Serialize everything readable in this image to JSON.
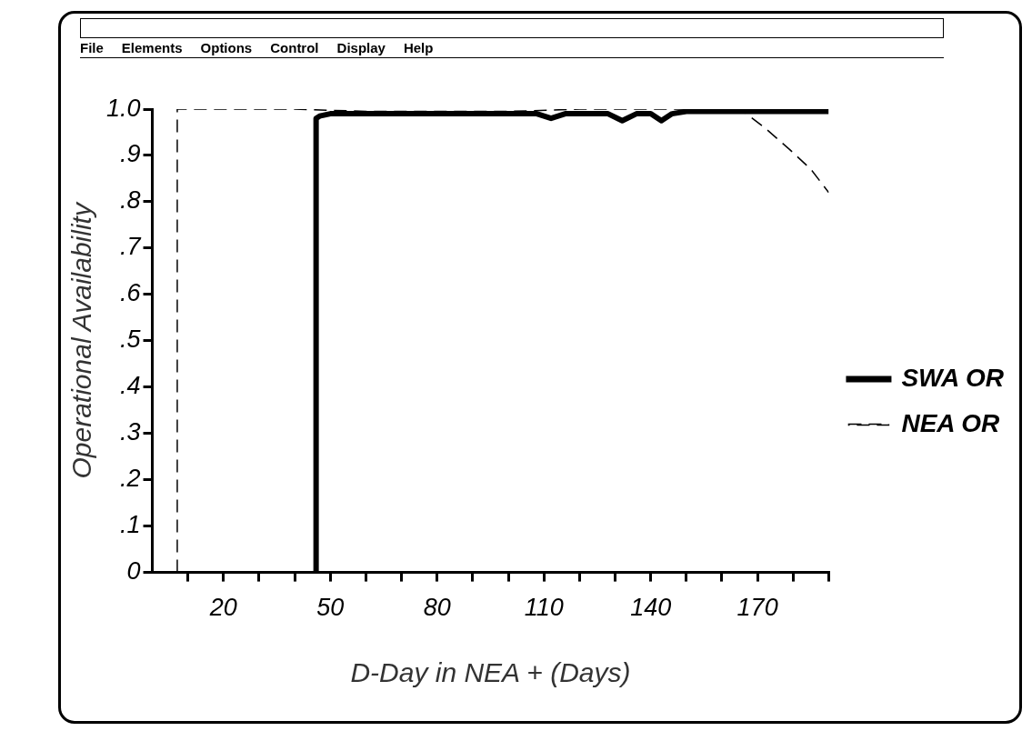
{
  "chart_data": {
    "type": "line",
    "xlabel": "D-Day in NEA + (Days)",
    "ylabel": "Operational Availability",
    "annotations": [
      "File",
      "Elements",
      "Options",
      "Control",
      "Display",
      "Help"
    ],
    "xlim": [
      0,
      190
    ],
    "ylim": [
      0,
      1
    ],
    "xticks": [
      {
        "value": 10,
        "label": null
      },
      20,
      {
        "value": 30,
        "label": null
      },
      {
        "value": 40,
        "label": null
      },
      50,
      {
        "value": 60,
        "label": null
      },
      {
        "value": 70,
        "label": null
      },
      80,
      {
        "value": 90,
        "label": null
      },
      {
        "value": 100,
        "label": null
      },
      110,
      {
        "value": 120,
        "label": null
      },
      {
        "value": 130,
        "label": null
      },
      140,
      {
        "value": 150,
        "label": null
      },
      {
        "value": 160,
        "label": null
      },
      170,
      {
        "value": 180,
        "label": null
      },
      {
        "value": 190,
        "label": null
      }
    ],
    "yticks": [
      {
        "value": 0,
        "label": "0"
      },
      {
        "value": 0.1,
        "label": ".1"
      },
      {
        "value": 0.2,
        "label": ".2"
      },
      {
        "value": 0.3,
        "label": ".3"
      },
      {
        "value": 0.4,
        "label": ".4"
      },
      {
        "value": 0.5,
        "label": ".5"
      },
      {
        "value": 0.6,
        "label": ".6"
      },
      {
        "value": 0.7,
        "label": ".7"
      },
      {
        "value": 0.8,
        "label": ".8"
      },
      {
        "value": 0.9,
        "label": ".9"
      },
      {
        "value": 1,
        "label": "1.0"
      }
    ],
    "grid": false,
    "legend": "right",
    "marker": "none",
    "series": [
      {
        "name": "SWA OR",
        "color": "#000000",
        "line_style": "solid",
        "x": [
          46,
          46,
          47,
          50,
          60,
          80,
          100,
          108,
          112,
          116,
          128,
          132,
          136,
          140,
          143,
          146,
          150,
          160,
          170,
          180,
          190
        ],
        "values": [
          0,
          0.98,
          0.985,
          0.99,
          0.99,
          0.99,
          0.99,
          0.99,
          0.98,
          0.99,
          0.99,
          0.975,
          0.99,
          0.99,
          0.975,
          0.99,
          0.995,
          0.995,
          0.995,
          0.995,
          0.995
        ]
      },
      {
        "name": "NEA OR",
        "color": "#000000",
        "line_style": "dashed",
        "x": [
          7,
          7,
          10,
          40,
          60,
          80,
          100,
          120,
          140,
          160,
          166,
          172,
          179,
          185,
          190
        ],
        "values": [
          0,
          1,
          1,
          1,
          0.995,
          0.995,
          0.995,
          1,
          1,
          1,
          0.995,
          0.96,
          0.913,
          0.87,
          0.82
        ]
      }
    ]
  }
}
